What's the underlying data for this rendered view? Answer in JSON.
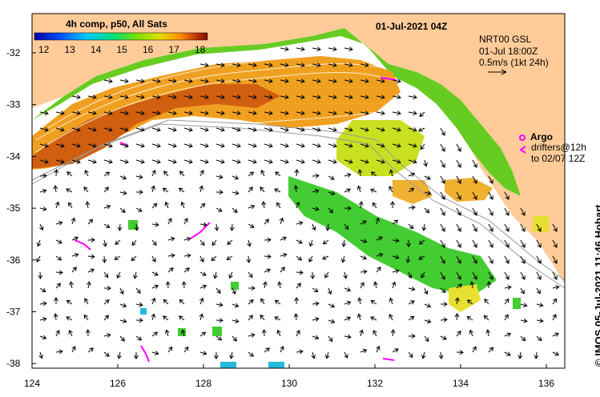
{
  "map": {
    "title_date": "01-Jul-2021 04Z",
    "product": "4h comp, p50, All Sats",
    "colorbar_ticks": [
      "12",
      "13",
      "14",
      "15",
      "16",
      "17",
      "18"
    ],
    "colorbar_colors": [
      "#0000a0",
      "#0050ff",
      "#00c8ff",
      "#00e080",
      "#80e000",
      "#e0e000",
      "#ff9000",
      "#c03000",
      "#801000"
    ],
    "current_source": "NRT00 GSL",
    "current_time": "01-Jul 18:00Z",
    "vector_scale": "0.5m/s (1kt 24h)",
    "argo_label": "Argo",
    "drifters_line1": "drifters@12h",
    "drifters_line2": "to 02/07 12Z",
    "credit": "IMOS 05-Jul-2021 11:46 Hobart",
    "copyright": "©",
    "lat_ticks": [
      "-32",
      "-33",
      "-34",
      "-35",
      "-36",
      "-37",
      "-38"
    ],
    "lon_ticks": [
      "124",
      "126",
      "128",
      "130",
      "132",
      "134",
      "136"
    ],
    "land_color": "#ffcc99",
    "drifter_color": "#ff00ff"
  }
}
